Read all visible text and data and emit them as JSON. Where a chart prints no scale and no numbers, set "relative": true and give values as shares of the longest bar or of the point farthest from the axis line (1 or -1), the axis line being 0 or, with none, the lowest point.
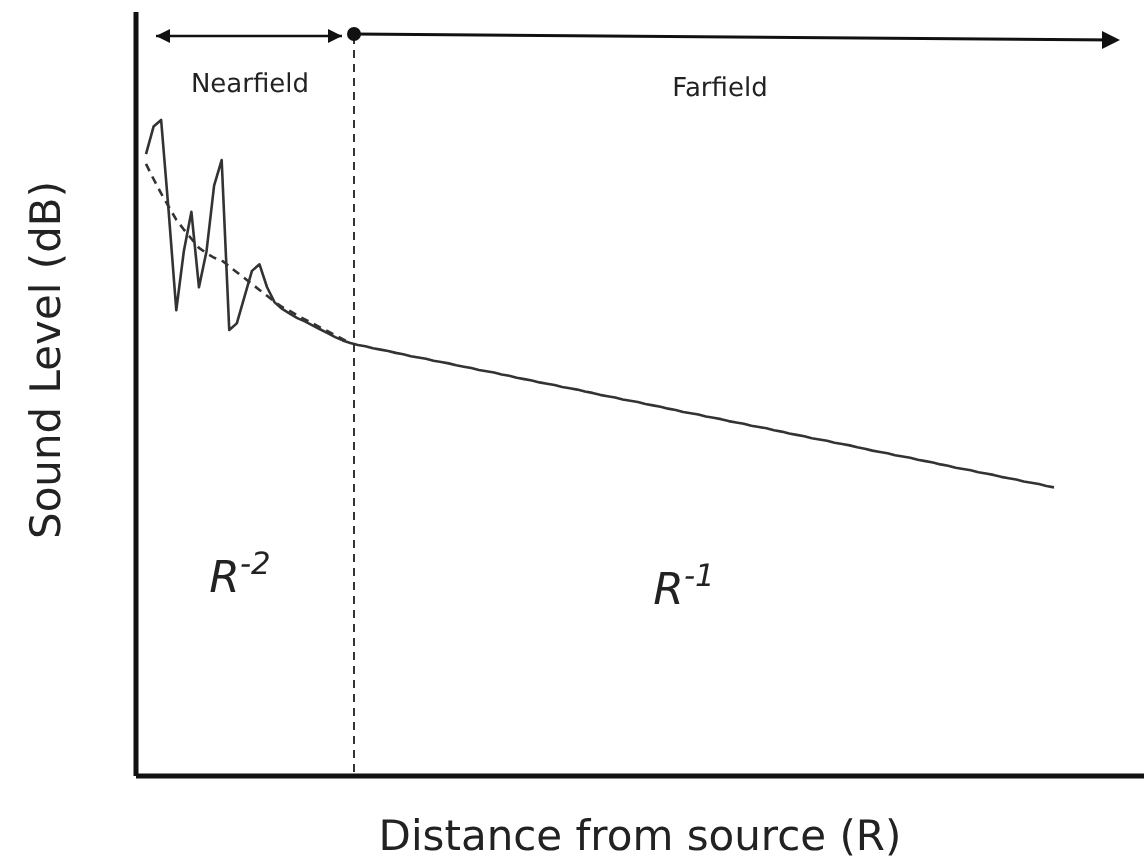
{
  "chart_data": {
    "type": "line",
    "relative": true,
    "xlabel": "Distance from source (R)",
    "ylabel": "Sound Level (dB)",
    "categories": [
      null,
      null,
      null,
      null,
      null,
      null,
      null,
      null,
      null,
      null,
      null,
      null,
      null,
      null,
      null,
      null,
      null,
      null,
      null,
      null,
      null,
      null,
      null,
      null,
      null,
      null,
      null,
      null,
      null,
      null,
      null,
      null,
      null,
      null,
      null,
      null,
      null,
      null,
      null,
      null,
      null,
      null,
      null,
      null,
      null,
      null,
      null,
      null,
      null,
      null,
      null,
      null,
      null,
      null,
      null,
      null,
      null,
      null,
      null,
      null,
      null,
      null,
      null,
      null,
      null,
      null,
      null,
      null,
      null,
      null,
      null,
      null,
      null,
      null,
      null,
      null,
      null,
      null,
      null,
      null,
      null,
      null,
      null,
      null,
      null,
      null,
      null,
      null,
      null,
      null,
      null,
      null,
      null,
      null,
      null,
      null,
      null,
      null,
      null,
      null,
      null,
      null,
      null,
      null,
      null,
      null,
      null,
      null,
      null,
      null,
      null,
      null,
      null,
      null,
      null,
      null,
      null,
      null,
      null,
      null,
      null
    ],
    "marker": "none",
    "series": [
      {
        "color": "#333333",
        "line_style": "solid",
        "values": [
          0.948,
          0.99,
          1.0,
          0.86,
          0.71,
          0.8,
          0.86,
          0.745,
          0.8,
          0.9,
          0.939,
          0.68,
          0.69,
          0.73,
          0.77,
          0.78,
          0.745,
          0.722,
          0.712,
          0.705,
          0.698,
          0.693,
          0.687,
          0.681,
          0.675,
          0.669,
          0.664,
          0.66,
          0.657,
          0.655,
          0.652,
          0.65,
          0.648,
          0.645,
          0.643,
          0.64,
          0.638,
          0.636,
          0.633,
          0.631,
          0.629,
          0.626,
          0.624,
          0.622,
          0.619,
          0.617,
          0.615,
          0.612,
          0.61,
          0.607,
          0.605,
          0.603,
          0.6,
          0.598,
          0.596,
          0.593,
          0.591,
          0.589,
          0.586,
          0.584,
          0.581,
          0.579,
          0.577,
          0.574,
          0.572,
          0.57,
          0.567,
          0.565,
          0.563,
          0.56,
          0.558,
          0.555,
          0.553,
          0.551,
          0.548,
          0.546,
          0.544,
          0.541,
          0.539,
          0.537,
          0.534,
          0.532,
          0.53,
          0.527,
          0.525,
          0.522,
          0.52,
          0.518,
          0.515,
          0.513,
          0.511,
          0.508,
          0.506,
          0.504,
          0.501,
          0.499,
          0.496,
          0.494,
          0.492,
          0.489,
          0.487,
          0.485,
          0.482,
          0.48,
          0.478,
          0.475,
          0.473,
          0.47,
          0.468,
          0.466,
          0.463,
          0.461,
          0.459,
          0.456,
          0.454,
          0.452,
          0.449,
          0.447,
          0.445,
          0.442,
          0.44
        ]
      },
      {
        "color": "#333333",
        "line_style": "dashed",
        "values": [
          0.933,
          0.91,
          0.888,
          0.868,
          0.848,
          0.833,
          0.819,
          0.805,
          0.797,
          0.79,
          0.786,
          0.777,
          0.768,
          0.759,
          0.75,
          0.741,
          0.732,
          0.723,
          0.715,
          0.709,
          0.702,
          0.696,
          0.69,
          0.684,
          0.678,
          0.672,
          0.666,
          0.66,
          null,
          null,
          null,
          null,
          null,
          null,
          null,
          null,
          null,
          null,
          null,
          null,
          null,
          null,
          null,
          null,
          null,
          null,
          null,
          null,
          null,
          null,
          null,
          null,
          null,
          null,
          null,
          null,
          null,
          null,
          null,
          null,
          null,
          null,
          null,
          null,
          null,
          null,
          null,
          null,
          null,
          null,
          null,
          null,
          null,
          null,
          null,
          null,
          null,
          null,
          null,
          null,
          null,
          null,
          null,
          null,
          null,
          null,
          null,
          null,
          null,
          null,
          null,
          null,
          null,
          null,
          null,
          null,
          null,
          null,
          null,
          null,
          null,
          null,
          null,
          null,
          null,
          null,
          null,
          null,
          null,
          null,
          null,
          null,
          null,
          null,
          null,
          null,
          null,
          null,
          null,
          null,
          null
        ]
      }
    ],
    "annotations": [
      "Nearfield",
      "Farfield",
      "R$^{-2}$",
      "R$^{-1}$"
    ]
  }
}
